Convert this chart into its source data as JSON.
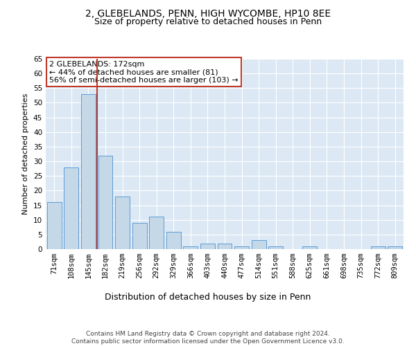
{
  "title": "2, GLEBELANDS, PENN, HIGH WYCOMBE, HP10 8EE",
  "subtitle": "Size of property relative to detached houses in Penn",
  "xlabel": "Distribution of detached houses by size in Penn",
  "ylabel": "Number of detached properties",
  "bins": [
    "71sqm",
    "108sqm",
    "145sqm",
    "182sqm",
    "219sqm",
    "256sqm",
    "292sqm",
    "329sqm",
    "366sqm",
    "403sqm",
    "440sqm",
    "477sqm",
    "514sqm",
    "551sqm",
    "588sqm",
    "625sqm",
    "661sqm",
    "698sqm",
    "735sqm",
    "772sqm",
    "809sqm"
  ],
  "values": [
    16,
    28,
    53,
    32,
    18,
    9,
    11,
    6,
    1,
    2,
    2,
    1,
    3,
    1,
    0,
    1,
    0,
    0,
    0,
    1,
    1
  ],
  "bar_color": "#c5d8e8",
  "bar_edge_color": "#5b9bd5",
  "vline_color": "#c0392b",
  "annotation_text": "2 GLEBELANDS: 172sqm\n← 44% of detached houses are smaller (81)\n56% of semi-detached houses are larger (103) →",
  "annotation_box_color": "#ffffff",
  "annotation_box_edge": "#c0392b",
  "ylim": [
    0,
    65
  ],
  "yticks": [
    0,
    5,
    10,
    15,
    20,
    25,
    30,
    35,
    40,
    45,
    50,
    55,
    60,
    65
  ],
  "plot_bg_color": "#dce9f5",
  "footer": "Contains HM Land Registry data © Crown copyright and database right 2024.\nContains public sector information licensed under the Open Government Licence v3.0.",
  "title_fontsize": 10,
  "subtitle_fontsize": 9,
  "xlabel_fontsize": 9,
  "ylabel_fontsize": 8,
  "tick_fontsize": 7.5,
  "footer_fontsize": 6.5,
  "annotation_fontsize": 8
}
